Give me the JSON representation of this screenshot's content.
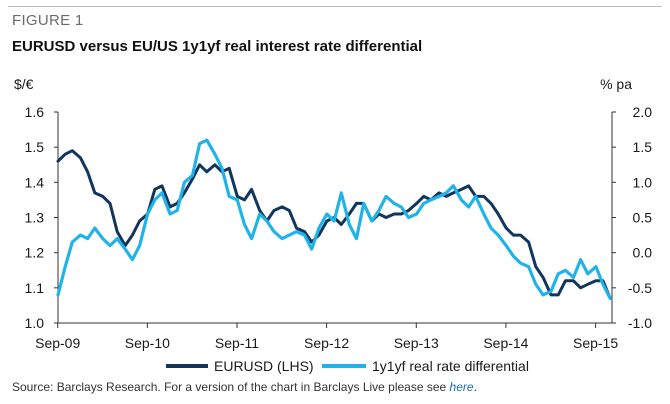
{
  "figure": {
    "label": "FIGURE 1",
    "title": "EURUSD versus EU/US 1y1yf real interest rate differential",
    "source_prefix": "Source: Barclays Research. For a version of the chart in Barclays Live please see ",
    "source_link": "here",
    "source_suffix": "."
  },
  "chart_data": {
    "type": "line",
    "ylabel_left": "$/€",
    "ylabel_right": "% pa",
    "ylim_left": [
      1.0,
      1.6
    ],
    "ylim_right": [
      -1.0,
      2.0
    ],
    "yticks_left": [
      "1.0",
      "1.1",
      "1.2",
      "1.3",
      "1.4",
      "1.5",
      "1.6"
    ],
    "yticks_right": [
      "-1.0",
      "-0.5",
      "0.0",
      "0.5",
      "1.0",
      "1.5",
      "2.0"
    ],
    "xticks": [
      "Sep-09",
      "Sep-10",
      "Sep-11",
      "Sep-12",
      "Sep-13",
      "Sep-14",
      "Sep-15"
    ],
    "xlim": [
      2009.67,
      2015.85
    ],
    "legend_position": "bottom",
    "grid": false,
    "series": [
      {
        "name": "EURUSD (LHS)",
        "axis": "left",
        "color": "#12355b",
        "x": [
          2009.67,
          2009.75,
          2009.83,
          2009.92,
          2010.0,
          2010.08,
          2010.17,
          2010.25,
          2010.33,
          2010.42,
          2010.5,
          2010.58,
          2010.67,
          2010.75,
          2010.83,
          2010.92,
          2011.0,
          2011.08,
          2011.17,
          2011.25,
          2011.33,
          2011.42,
          2011.5,
          2011.58,
          2011.67,
          2011.75,
          2011.83,
          2011.92,
          2012.0,
          2012.08,
          2012.17,
          2012.25,
          2012.33,
          2012.42,
          2012.5,
          2012.58,
          2012.67,
          2012.75,
          2012.83,
          2012.92,
          2013.0,
          2013.08,
          2013.17,
          2013.25,
          2013.33,
          2013.42,
          2013.5,
          2013.58,
          2013.67,
          2013.75,
          2013.83,
          2013.92,
          2014.0,
          2014.08,
          2014.17,
          2014.25,
          2014.33,
          2014.42,
          2014.5,
          2014.58,
          2014.67,
          2014.75,
          2014.83,
          2014.92,
          2015.0,
          2015.08,
          2015.17,
          2015.25,
          2015.33,
          2015.42,
          2015.5,
          2015.58,
          2015.67,
          2015.75,
          2015.83
        ],
        "values": [
          1.46,
          1.48,
          1.49,
          1.47,
          1.43,
          1.37,
          1.36,
          1.34,
          1.26,
          1.22,
          1.25,
          1.29,
          1.31,
          1.38,
          1.39,
          1.33,
          1.34,
          1.37,
          1.41,
          1.45,
          1.43,
          1.45,
          1.43,
          1.44,
          1.36,
          1.35,
          1.38,
          1.32,
          1.29,
          1.32,
          1.33,
          1.32,
          1.27,
          1.26,
          1.23,
          1.25,
          1.29,
          1.3,
          1.28,
          1.31,
          1.34,
          1.34,
          1.29,
          1.31,
          1.3,
          1.31,
          1.31,
          1.32,
          1.34,
          1.36,
          1.35,
          1.37,
          1.36,
          1.37,
          1.38,
          1.39,
          1.36,
          1.36,
          1.34,
          1.31,
          1.27,
          1.25,
          1.25,
          1.23,
          1.16,
          1.13,
          1.08,
          1.08,
          1.12,
          1.12,
          1.1,
          1.11,
          1.12,
          1.12,
          1.07
        ]
      },
      {
        "name": "1y1yf real rate differential",
        "axis": "right",
        "color": "#1fb3e8",
        "x": [
          2009.67,
          2009.75,
          2009.83,
          2009.92,
          2010.0,
          2010.08,
          2010.17,
          2010.25,
          2010.33,
          2010.42,
          2010.5,
          2010.58,
          2010.67,
          2010.75,
          2010.83,
          2010.92,
          2011.0,
          2011.08,
          2011.17,
          2011.25,
          2011.33,
          2011.42,
          2011.5,
          2011.58,
          2011.67,
          2011.75,
          2011.83,
          2011.92,
          2012.0,
          2012.08,
          2012.17,
          2012.25,
          2012.33,
          2012.42,
          2012.5,
          2012.58,
          2012.67,
          2012.75,
          2012.83,
          2012.92,
          2013.0,
          2013.08,
          2013.17,
          2013.25,
          2013.33,
          2013.42,
          2013.5,
          2013.58,
          2013.67,
          2013.75,
          2013.83,
          2013.92,
          2014.0,
          2014.08,
          2014.17,
          2014.25,
          2014.33,
          2014.42,
          2014.5,
          2014.58,
          2014.67,
          2014.75,
          2014.83,
          2014.92,
          2015.0,
          2015.08,
          2015.17,
          2015.25,
          2015.33,
          2015.42,
          2015.5,
          2015.58,
          2015.67,
          2015.75,
          2015.83
        ],
        "values": [
          -0.6,
          -0.2,
          0.15,
          0.25,
          0.2,
          0.35,
          0.2,
          0.1,
          0.2,
          0.05,
          -0.1,
          0.1,
          0.55,
          0.75,
          0.85,
          0.55,
          0.6,
          1.0,
          1.1,
          1.55,
          1.6,
          1.4,
          1.2,
          0.8,
          0.75,
          0.4,
          0.2,
          0.55,
          0.45,
          0.3,
          0.2,
          0.25,
          0.3,
          0.25,
          0.05,
          0.35,
          0.55,
          0.45,
          0.85,
          0.4,
          0.2,
          0.7,
          0.45,
          0.6,
          0.8,
          0.7,
          0.65,
          0.5,
          0.55,
          0.7,
          0.75,
          0.8,
          0.85,
          0.95,
          0.75,
          0.65,
          0.8,
          0.55,
          0.35,
          0.25,
          0.1,
          -0.05,
          -0.15,
          -0.2,
          -0.45,
          -0.6,
          -0.55,
          -0.3,
          -0.25,
          -0.35,
          -0.1,
          -0.3,
          -0.2,
          -0.45,
          -0.65
        ]
      }
    ]
  }
}
